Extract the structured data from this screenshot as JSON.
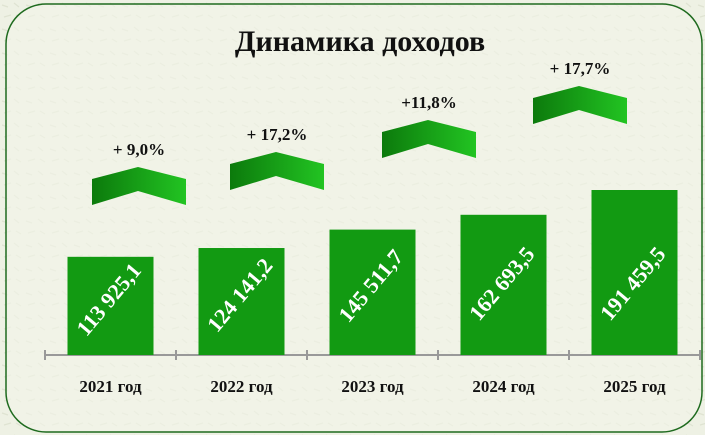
{
  "chart_data": {
    "type": "bar",
    "title": "Динамика доходов",
    "categories": [
      "2021 год",
      "2022 год",
      "2023 год",
      "2024 год",
      "2025 год"
    ],
    "values": [
      113925.1,
      124141.2,
      145511.7,
      162693.5,
      191459.5
    ],
    "value_labels": [
      "113 925,1",
      "124 141,2",
      "145 511,7",
      "162 693,5",
      "191 459,5"
    ],
    "color": "#129a12",
    "annotations": [
      "+ 9,0%",
      "+ 17,2%",
      "+11,8%",
      "+ 17,7%"
    ]
  }
}
